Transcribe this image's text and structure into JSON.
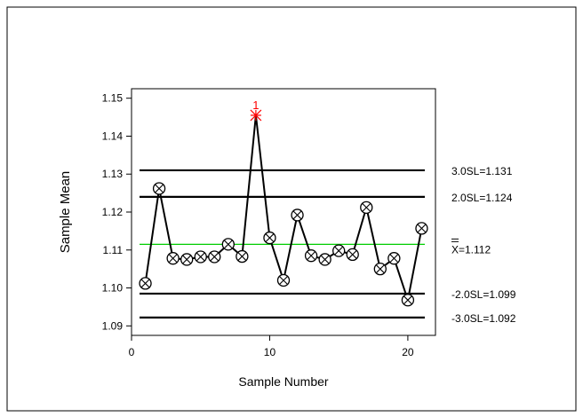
{
  "chart_data": {
    "type": "line",
    "title": "",
    "xlabel": "Sample Number",
    "ylabel": "Sample Mean",
    "xlim": [
      0,
      22
    ],
    "ylim": [
      1.0875,
      1.1525
    ],
    "x_ticks": [
      0,
      10,
      20
    ],
    "x_tick_labels": [
      "0",
      "10",
      "20"
    ],
    "y_ticks": [
      1.09,
      1.1,
      1.11,
      1.12,
      1.13,
      1.14,
      1.15
    ],
    "y_tick_labels": [
      "1.09",
      "1.10",
      "1.11",
      "1.12",
      "1.13",
      "1.14",
      "1.15"
    ],
    "grid": false,
    "legend": "none",
    "series": [
      {
        "x": [
          1,
          2,
          3,
          4,
          5,
          6,
          7,
          8,
          9,
          10,
          11,
          12,
          13,
          14,
          15,
          16,
          17,
          18,
          19,
          20,
          21
        ],
        "values": [
          1.1012,
          1.1262,
          1.1078,
          1.1075,
          1.1082,
          1.1082,
          1.1115,
          1.1083,
          1.1455,
          1.1132,
          1.102,
          1.1192,
          1.1085,
          1.1075,
          1.1098,
          1.1088,
          1.1212,
          1.105,
          1.1078,
          1.0968,
          1.1157
        ],
        "color": "#000000"
      }
    ],
    "out_of_control": [
      {
        "index": 8,
        "label": "1",
        "color": "#ff0000"
      }
    ],
    "control_lines": [
      {
        "value": 1.131,
        "label": "3.0SL=1.131",
        "color": "#000000"
      },
      {
        "value": 1.124,
        "label": "2.0SL=1.124",
        "color": "#000000"
      },
      {
        "value": 1.1115,
        "label": "X=1.112",
        "color": "#00cc00",
        "center": true
      },
      {
        "value": 1.0985,
        "label": "-2.0SL=1.099",
        "color": "#000000"
      },
      {
        "value": 1.0922,
        "label": "-3.0SL=1.092",
        "color": "#000000"
      }
    ]
  }
}
